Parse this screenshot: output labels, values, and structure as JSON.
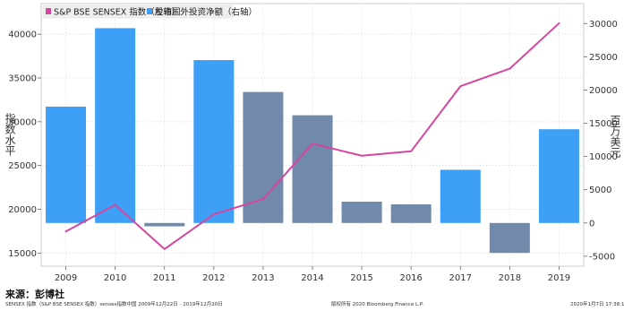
{
  "chart_data": {
    "type": "bar+line",
    "categories": [
      "2009",
      "2010",
      "2011",
      "2012",
      "2013",
      "2014",
      "2015",
      "2016",
      "2017",
      "2018",
      "2019"
    ],
    "series": [
      {
        "name": "S&P BSE SENSEX 指数（左轴）",
        "type": "line",
        "axis": "left",
        "color": "#d5479f",
        "values": [
          17465,
          20509,
          15455,
          19427,
          21171,
          27499,
          26118,
          26626,
          34057,
          36068,
          41253
        ]
      },
      {
        "name": "股市国外投资净额（右轴）",
        "type": "bar",
        "axis": "right",
        "values": [
          17500,
          29300,
          -500,
          24500,
          19700,
          16200,
          3200,
          2800,
          8000,
          -4500,
          14100
        ],
        "positive_years_color": "#3d9ff5",
        "other_years_color": "#7189ab",
        "bar_colors": [
          "#3d9ff5",
          "#3d9ff5",
          "#7189ab",
          "#3d9ff5",
          "#7189ab",
          "#7189ab",
          "#7189ab",
          "#7189ab",
          "#3d9ff5",
          "#7189ab",
          "#3d9ff5"
        ]
      }
    ],
    "left_axis": {
      "label": "指数水平",
      "range": [
        13500,
        43500
      ],
      "ticks": [
        "15000",
        "20000",
        "25000",
        "30000",
        "35000",
        "40000"
      ]
    },
    "right_axis": {
      "label": "百万美元",
      "range": [
        -6500,
        33000
      ],
      "ticks": [
        "-5000",
        "0",
        "5000",
        "10000",
        "15000",
        "20000",
        "25000",
        "30000"
      ]
    },
    "grid": true,
    "legend_position": "top-left"
  },
  "source": "来源：彭博社",
  "footer": {
    "left": "SENSEX 指数（S&P BSE SENSEX 指数）sensex指数中国   2009年12月22日 - 2019年12月20日",
    "middle": "版权所有 2020 Bloomberg Finance L.P.",
    "right": "2020年1月7日  17:38:16"
  }
}
